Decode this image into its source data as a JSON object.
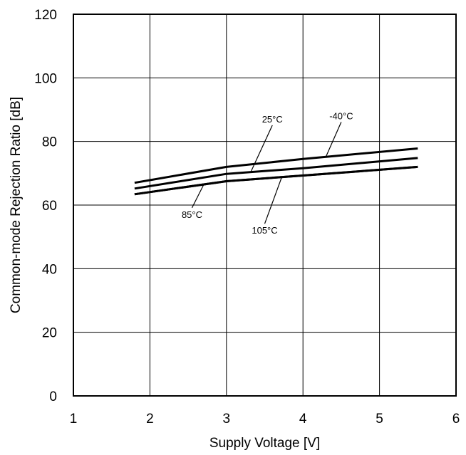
{
  "chart_data": {
    "type": "line",
    "title": "",
    "xlabel": "Supply Voltage [V]",
    "ylabel": "Common-mode Rejection Ratio [dB]",
    "xlim": [
      1,
      6
    ],
    "ylim": [
      0,
      120
    ],
    "x_ticks": [
      1,
      2,
      3,
      4,
      5,
      6
    ],
    "y_ticks": [
      0,
      20,
      40,
      60,
      80,
      100,
      120
    ],
    "x_tick_labels": [
      "1",
      "2",
      "3",
      "4",
      "5",
      "6"
    ],
    "y_tick_labels": [
      "0",
      "20",
      "40",
      "60",
      "80",
      "100",
      "120"
    ],
    "grid": true,
    "legend": "none",
    "line_color": "#000000",
    "series": [
      {
        "name": "-40°C",
        "x": [
          1.8,
          3,
          4,
          5.5
        ],
        "y": [
          67,
          72,
          74.5,
          77.8
        ]
      },
      {
        "name": "25°C",
        "x": [
          1.8,
          3,
          4,
          5.5
        ],
        "y": [
          65.2,
          69.8,
          71.6,
          74.8
        ]
      },
      {
        "name": "85°C",
        "x": [
          1.8,
          3,
          4,
          5.5
        ],
        "y": [
          63.4,
          67.5,
          69.3,
          72
        ]
      },
      {
        "name": "105°C",
        "x": [
          1.8,
          3,
          4,
          5.5
        ],
        "y": [
          63.4,
          67.5,
          69.3,
          72
        ]
      }
    ],
    "annotations": [
      {
        "text": "25°C",
        "tx": 3.6,
        "ty": 86,
        "ax": 3.32,
        "ay": 70.5
      },
      {
        "text": "-40°C",
        "tx": 4.5,
        "ty": 87,
        "ax": 4.3,
        "ay": 75.2
      },
      {
        "text": "85°C",
        "tx": 2.55,
        "ty": 56,
        "ax": 2.7,
        "ay": 66.3
      },
      {
        "text": "105°C",
        "tx": 3.5,
        "ty": 51,
        "ax": 3.72,
        "ay": 68.6
      }
    ]
  }
}
